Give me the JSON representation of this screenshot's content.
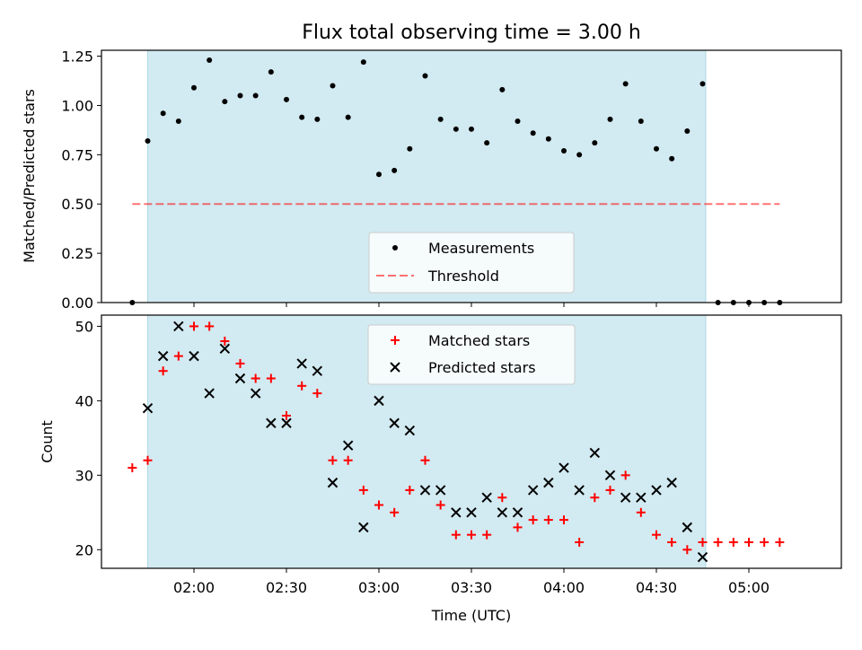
{
  "title": "Flux total observing time = 3.00 h",
  "colors": {
    "shade": "#add8e6",
    "measurement": "#000000",
    "threshold": "#ff0000",
    "matched": "#ff0000",
    "predicted": "#000000"
  },
  "chart_data": [
    {
      "type": "scatter",
      "panel": "top",
      "xlabel": "",
      "ylabel": "Matched/Predicted stars",
      "yticks": [
        "0.00",
        "0.25",
        "0.50",
        "0.75",
        "1.00",
        "1.25"
      ],
      "ylim": [
        0,
        1.28
      ],
      "xlim": [
        "01:30",
        "05:30"
      ],
      "shaded_span": [
        "01:45",
        "04:46"
      ],
      "legend": {
        "placement": "lower-center",
        "entries": [
          "Measurements",
          "Threshold"
        ]
      },
      "threshold": {
        "name": "Threshold",
        "y": 0.5,
        "x": [
          "01:40",
          "05:10"
        ]
      },
      "series": [
        {
          "name": "Measurements",
          "x": [
            "01:40",
            "01:45",
            "01:50",
            "01:55",
            "02:00",
            "02:05",
            "02:10",
            "02:15",
            "02:20",
            "02:25",
            "02:30",
            "02:35",
            "02:40",
            "02:45",
            "02:50",
            "02:55",
            "03:00",
            "03:05",
            "03:10",
            "03:15",
            "03:20",
            "03:25",
            "03:30",
            "03:35",
            "03:40",
            "03:45",
            "03:50",
            "03:55",
            "04:00",
            "04:05",
            "04:10",
            "04:15",
            "04:20",
            "04:25",
            "04:30",
            "04:35",
            "04:40",
            "04:45",
            "04:50",
            "04:55",
            "05:00",
            "05:05",
            "05:10"
          ],
          "y": [
            0.0,
            0.82,
            0.96,
            0.92,
            1.09,
            1.23,
            1.02,
            1.05,
            1.05,
            1.17,
            1.03,
            0.94,
            0.93,
            1.1,
            0.94,
            1.22,
            0.65,
            0.67,
            0.78,
            1.15,
            0.93,
            0.88,
            0.88,
            0.81,
            1.08,
            0.92,
            0.86,
            0.83,
            0.77,
            0.75,
            0.81,
            0.93,
            1.11,
            0.92,
            0.78,
            0.73,
            0.87,
            1.11,
            0.0,
            0.0,
            0.0,
            0.0,
            0.0
          ]
        }
      ]
    },
    {
      "type": "scatter",
      "panel": "bottom",
      "xlabel": "Time (UTC)",
      "ylabel": "Count",
      "xticks": [
        "02:00",
        "02:30",
        "03:00",
        "03:30",
        "04:00",
        "04:30",
        "05:00"
      ],
      "yticks": [
        "20",
        "30",
        "40",
        "50"
      ],
      "ylim": [
        17.5,
        51.5
      ],
      "xlim": [
        "01:30",
        "05:30"
      ],
      "shaded_span": [
        "01:45",
        "04:46"
      ],
      "legend": {
        "placement": "upper-center",
        "entries": [
          "Matched stars",
          "Predicted stars"
        ]
      },
      "series": [
        {
          "name": "Matched stars",
          "marker": "+",
          "x": [
            "01:40",
            "01:45",
            "01:50",
            "01:55",
            "02:00",
            "02:05",
            "02:10",
            "02:15",
            "02:20",
            "02:25",
            "02:30",
            "02:35",
            "02:40",
            "02:45",
            "02:50",
            "02:55",
            "03:00",
            "03:05",
            "03:10",
            "03:15",
            "03:20",
            "03:25",
            "03:30",
            "03:35",
            "03:40",
            "03:45",
            "03:50",
            "03:55",
            "04:00",
            "04:05",
            "04:10",
            "04:15",
            "04:20",
            "04:25",
            "04:30",
            "04:35",
            "04:40",
            "04:45",
            "04:50",
            "04:55",
            "05:00",
            "05:05",
            "05:10"
          ],
          "y": [
            31,
            32,
            44,
            46,
            50,
            50,
            48,
            45,
            43,
            43,
            38,
            42,
            41,
            32,
            32,
            28,
            26,
            25,
            28,
            32,
            26,
            22,
            22,
            22,
            27,
            23,
            24,
            24,
            24,
            21,
            27,
            28,
            30,
            25,
            22,
            21,
            20,
            21,
            21,
            21,
            21,
            21,
            21
          ]
        },
        {
          "name": "Predicted stars",
          "marker": "x",
          "x": [
            "01:45",
            "01:50",
            "01:55",
            "02:00",
            "02:05",
            "02:10",
            "02:15",
            "02:20",
            "02:25",
            "02:30",
            "02:35",
            "02:40",
            "02:45",
            "02:50",
            "02:55",
            "03:00",
            "03:05",
            "03:10",
            "03:15",
            "03:20",
            "03:25",
            "03:30",
            "03:35",
            "03:40",
            "03:45",
            "03:50",
            "03:55",
            "04:00",
            "04:05",
            "04:10",
            "04:15",
            "04:20",
            "04:25",
            "04:30",
            "04:35",
            "04:40",
            "04:45"
          ],
          "y": [
            39,
            46,
            50,
            46,
            41,
            47,
            43,
            41,
            37,
            37,
            45,
            44,
            29,
            34,
            23,
            40,
            37,
            36,
            28,
            28,
            25,
            25,
            27,
            25,
            25,
            28,
            29,
            31,
            28,
            33,
            30,
            27,
            27,
            28,
            29,
            23,
            19
          ]
        }
      ]
    }
  ]
}
